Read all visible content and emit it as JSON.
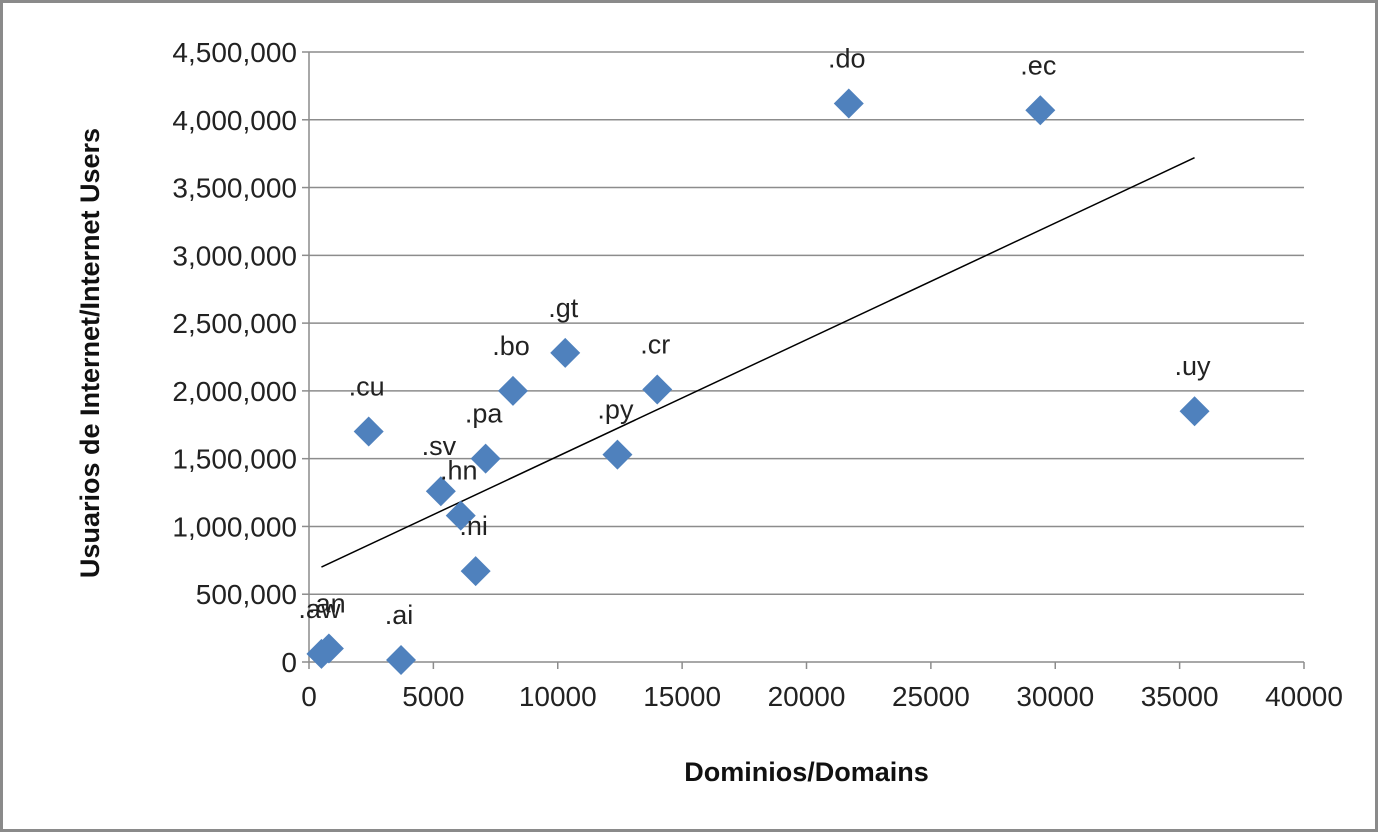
{
  "chart_data": {
    "type": "scatter",
    "title": "",
    "xlabel": "Dominios/Domains",
    "ylabel": "Usuarios de Internet/Internet Users",
    "xlim": [
      0,
      40000
    ],
    "ylim": [
      0,
      4500000
    ],
    "x_ticks": [
      0,
      5000,
      10000,
      15000,
      20000,
      25000,
      30000,
      35000,
      40000
    ],
    "x_tick_labels": [
      "0",
      "5000",
      "10000",
      "15000",
      "20000",
      "25000",
      "30000",
      "35000",
      "40000"
    ],
    "y_ticks": [
      0,
      500000,
      1000000,
      1500000,
      2000000,
      2500000,
      3000000,
      3500000,
      4000000,
      4500000
    ],
    "y_tick_labels": [
      "0",
      "500,000",
      "1,000,000",
      "1,500,000",
      "2,000,000",
      "2,500,000",
      "3,000,000",
      "3,500,000",
      "4,000,000",
      "4,500,000"
    ],
    "grid": "horizontal",
    "legend": "none",
    "marker": "diamond",
    "marker_color": "#4f81bd",
    "points": [
      {
        "label": ".aw",
        "x": 500,
        "y": 60000
      },
      {
        "label": ".an",
        "x": 800,
        "y": 100000
      },
      {
        "label": ".ai",
        "x": 3700,
        "y": 15000
      },
      {
        "label": ".cu",
        "x": 2400,
        "y": 1700000
      },
      {
        "label": ".sv",
        "x": 5300,
        "y": 1260000
      },
      {
        "label": ".hn",
        "x": 6100,
        "y": 1080000
      },
      {
        "label": ".ni",
        "x": 6700,
        "y": 670000
      },
      {
        "label": ".pa",
        "x": 7100,
        "y": 1500000
      },
      {
        "label": ".bo",
        "x": 8200,
        "y": 2000000
      },
      {
        "label": ".gt",
        "x": 10300,
        "y": 2280000
      },
      {
        "label": ".py",
        "x": 12400,
        "y": 1530000
      },
      {
        "label": ".cr",
        "x": 14000,
        "y": 2010000
      },
      {
        "label": ".do",
        "x": 21700,
        "y": 4120000
      },
      {
        "label": ".ec",
        "x": 29400,
        "y": 4070000
      },
      {
        "label": ".uy",
        "x": 35600,
        "y": 1850000
      }
    ],
    "trendline": {
      "type": "linear",
      "x": [
        500,
        35600
      ],
      "y": [
        700000,
        3720000
      ],
      "color": "#000000"
    }
  }
}
